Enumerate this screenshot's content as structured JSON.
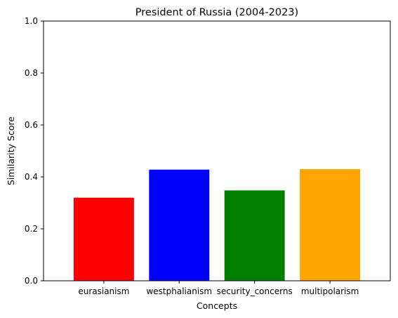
{
  "chart_data": {
    "type": "bar",
    "title": "President of Russia (2004-2023)",
    "xlabel": "Concepts",
    "ylabel": "Similarity Score",
    "categories": [
      "eurasianism",
      "westphalianism",
      "security_concerns",
      "multipolarism"
    ],
    "values": [
      0.32,
      0.428,
      0.348,
      0.43
    ],
    "colors": [
      "#ff0000",
      "#0000ff",
      "#008000",
      "#ffa500"
    ],
    "ylim": [
      0,
      1.0
    ],
    "yticks": [
      0.0,
      0.2,
      0.4,
      0.6,
      0.8,
      1.0
    ],
    "ytick_labels": [
      "0.0",
      "0.2",
      "0.4",
      "0.6",
      "0.8",
      "1.0"
    ],
    "grid": false,
    "legend": "none"
  }
}
